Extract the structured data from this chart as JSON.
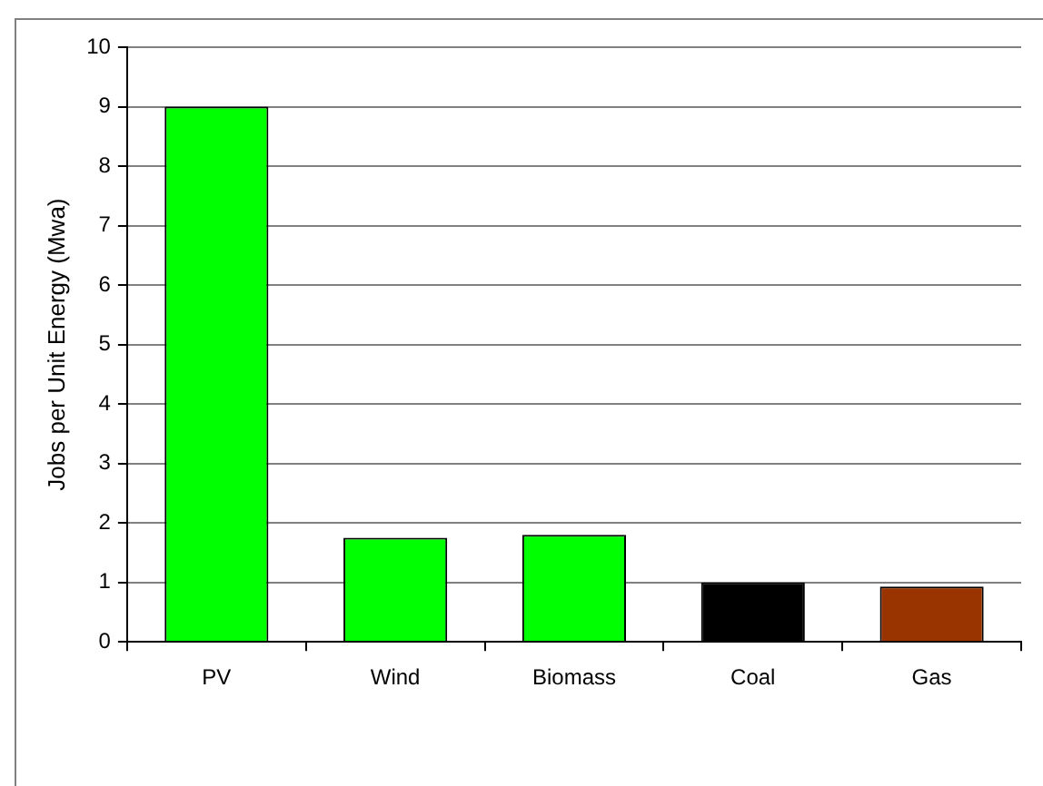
{
  "chart_data": {
    "type": "bar",
    "ylabel": "Jobs per Unit Energy (Mwa)",
    "categories": [
      "PV",
      "Wind",
      "Biomass",
      "Coal",
      "Gas"
    ],
    "values": [
      9,
      1.75,
      1.8,
      1.0,
      0.93
    ],
    "colors": [
      "#00ff00",
      "#00ff00",
      "#00ff00",
      "#000000",
      "#993300"
    ],
    "ylim": [
      0,
      10
    ],
    "yticks": [
      0,
      1,
      2,
      3,
      4,
      5,
      6,
      7,
      8,
      9,
      10
    ],
    "grid": "y",
    "legend": false
  }
}
